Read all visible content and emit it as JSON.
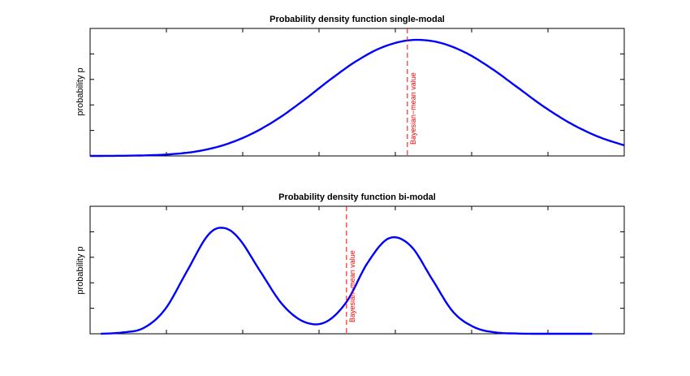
{
  "colors": {
    "curve": "#0000ff",
    "mean_line": "#ff0000",
    "axes": "#000000"
  },
  "chart_data": [
    {
      "type": "line",
      "title": "Probability density function single-modal",
      "xlabel": "",
      "ylabel": "probability p",
      "xlim": [
        0,
        1
      ],
      "ylim": [
        0,
        1
      ],
      "grid": false,
      "series": [
        {
          "x": [
            0.0,
            0.05,
            0.1,
            0.15,
            0.2,
            0.25,
            0.3,
            0.35,
            0.4,
            0.45,
            0.5,
            0.55,
            0.6,
            0.65,
            0.7,
            0.75,
            0.8,
            0.85,
            0.9,
            0.95,
            1.0
          ],
          "values": [
            0.0,
            0.001,
            0.004,
            0.013,
            0.036,
            0.085,
            0.168,
            0.287,
            0.437,
            0.6,
            0.748,
            0.857,
            0.908,
            0.893,
            0.816,
            0.69,
            0.538,
            0.385,
            0.254,
            0.153,
            0.083
          ]
        }
      ],
      "mean_line": {
        "x": 0.594,
        "label": "Bayesian−mean value"
      }
    },
    {
      "type": "line",
      "title": "Probability density function bi-modal",
      "xlabel": "",
      "ylabel": "probability p",
      "xlim": [
        0,
        1
      ],
      "ylim": [
        0,
        1
      ],
      "grid": false,
      "series": [
        {
          "x": [
            0.02,
            0.06,
            0.1,
            0.14,
            0.18,
            0.22,
            0.25,
            0.28,
            0.32,
            0.36,
            0.4,
            0.44,
            0.48,
            0.52,
            0.56,
            0.6,
            0.64,
            0.68,
            0.72,
            0.76,
            0.8,
            0.84,
            0.88,
            0.94
          ],
          "values": [
            0.0,
            0.01,
            0.045,
            0.19,
            0.48,
            0.77,
            0.83,
            0.74,
            0.48,
            0.23,
            0.095,
            0.09,
            0.25,
            0.56,
            0.75,
            0.69,
            0.43,
            0.17,
            0.05,
            0.01,
            0.002,
            0.0,
            0.0,
            0.0
          ]
        }
      ],
      "mean_line": {
        "x": 0.48,
        "label": "Bayesian−mean value"
      }
    }
  ]
}
